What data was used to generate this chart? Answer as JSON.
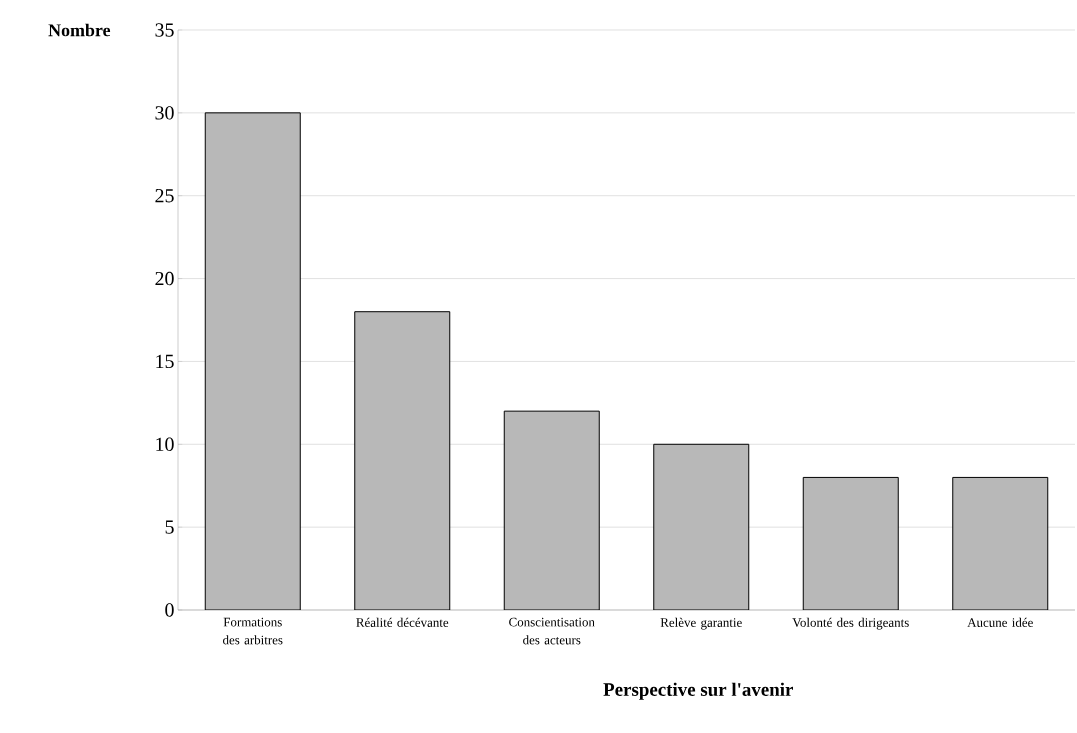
{
  "chart_data": {
    "type": "bar",
    "xlabel": "Perspective sur l'avenir",
    "ylabel": "Nombre",
    "categories": [
      "Formations des arbitres",
      "Réalité décévante",
      "Conscientisation des acteurs",
      "Relève garantie",
      "Volonté des dirigeants",
      "Aucune idée"
    ],
    "values": [
      30,
      18,
      12,
      10,
      8,
      8
    ],
    "color": "#b8b8b8",
    "ylim": [
      0,
      35
    ],
    "yticks": [
      0,
      5,
      10,
      15,
      20,
      25,
      30,
      35
    ],
    "grid": "y"
  }
}
